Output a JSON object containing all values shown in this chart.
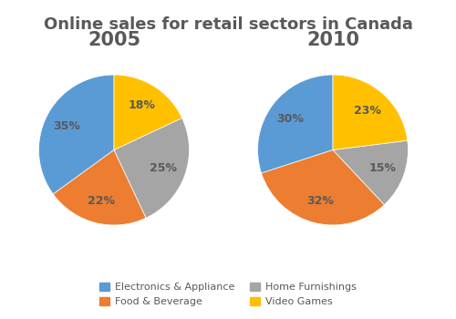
{
  "title": "Online sales for retail sectors in Canada",
  "title_fontsize": 13,
  "title_fontweight": "bold",
  "subtitle_2005": "2005",
  "subtitle_2010": "2010",
  "subtitle_fontsize": 15,
  "subtitle_fontweight": "bold",
  "categories": [
    "Electronics & Appliance",
    "Food & Beverage",
    "Home Furnishings",
    "Video Games"
  ],
  "colors": [
    "#5B9BD5",
    "#ED7D31",
    "#A5A5A5",
    "#FFC000"
  ],
  "values_2005": [
    35,
    22,
    25,
    18
  ],
  "values_2010": [
    30,
    32,
    15,
    23
  ],
  "startangle": 90,
  "legend_labels": [
    "Electronics & Appliance",
    "Food & Beverage",
    "Home Furnishings",
    "Video Games"
  ],
  "background_color": "#ffffff",
  "text_color": "#595959"
}
